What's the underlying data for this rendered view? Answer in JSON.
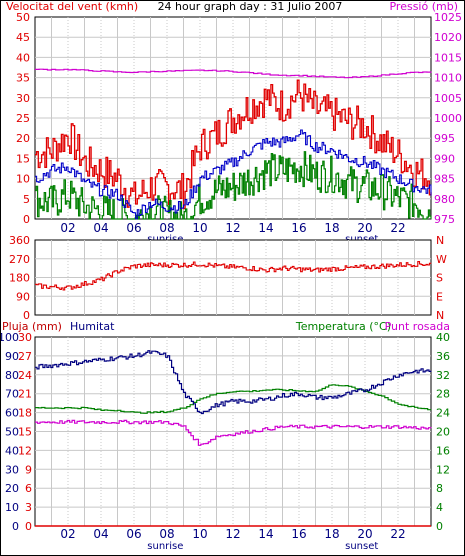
{
  "header": {
    "left_label": "Velocitat del vent (kmh)",
    "title": "24 hour graph day : 31 Julio 2007",
    "right_label": "Pressió (mb)"
  },
  "colors": {
    "red": "#e00000",
    "blue": "#0000c8",
    "green": "#008000",
    "magenta": "#d000d0",
    "darkred": "#c00000",
    "navy": "#000080",
    "grid": "#c8c8c8"
  },
  "x_ticks": [
    "02",
    "04",
    "06",
    "08",
    "10",
    "12",
    "14",
    "16",
    "18",
    "20",
    "22"
  ],
  "sunrise_label": "sunrise",
  "sunset_label": "sunset",
  "chart_data": [
    {
      "type": "line",
      "ylim": [
        0,
        50
      ],
      "y2lim": [
        975,
        1025
      ],
      "yticks": [
        "0",
        "5",
        "10",
        "15",
        "20",
        "25",
        "30",
        "35",
        "40",
        "45",
        "50"
      ],
      "y2ticks": [
        "975",
        "980",
        "985",
        "990",
        "995",
        "1000",
        "1005",
        "1010",
        "1015",
        "1020",
        "1025"
      ],
      "x": [
        0,
        1,
        2,
        3,
        4,
        5,
        6,
        7,
        8,
        9,
        10,
        11,
        12,
        13,
        14,
        15,
        16,
        17,
        18,
        19,
        20,
        21,
        22,
        23,
        24
      ],
      "series": [
        {
          "name": "gust",
          "values": [
            16,
            17,
            21,
            14,
            12,
            10,
            5,
            8,
            8,
            7,
            18,
            21,
            25,
            28,
            30,
            28,
            31,
            27,
            26,
            24,
            23,
            19,
            16,
            12,
            10
          ]
        },
        {
          "name": "avg",
          "values": [
            10,
            12,
            13,
            9,
            7,
            6,
            1,
            4,
            3,
            3,
            10,
            12,
            14,
            17,
            19,
            19,
            21,
            18,
            17,
            15,
            14,
            12,
            10,
            8,
            7
          ]
        },
        {
          "name": "min",
          "values": [
            5,
            4,
            6,
            3,
            2,
            1,
            0,
            2,
            1,
            0,
            5,
            7,
            8,
            10,
            12,
            12,
            13,
            11,
            11,
            9,
            8,
            7,
            5,
            4,
            2
          ]
        },
        {
          "name": "pressure",
          "values": [
            1012,
            1012,
            1012,
            1011.8,
            1011.6,
            1011.4,
            1011.3,
            1011.5,
            1011.6,
            1011.7,
            1011.8,
            1011.7,
            1011.5,
            1011.2,
            1010.8,
            1010.6,
            1010.5,
            1010.3,
            1010.1,
            1010,
            1010.2,
            1010.6,
            1011,
            1011.3,
            1011.3
          ]
        }
      ]
    },
    {
      "type": "line",
      "ylim": [
        0,
        360
      ],
      "yticks": [
        "0",
        "90",
        "180",
        "270",
        "360"
      ],
      "compass": [
        "N",
        "W",
        "S",
        "E",
        "N"
      ],
      "x": [
        0,
        1,
        2,
        3,
        4,
        5,
        6,
        7,
        8,
        9,
        10,
        11,
        12,
        13,
        14,
        15,
        16,
        17,
        18,
        19,
        20,
        21,
        22,
        23,
        24
      ],
      "series": [
        {
          "name": "direction",
          "values": [
            140,
            135,
            130,
            150,
            170,
            210,
            235,
            240,
            240,
            240,
            245,
            235,
            230,
            225,
            215,
            225,
            220,
            215,
            222,
            225,
            230,
            235,
            240,
            245,
            245
          ]
        }
      ]
    },
    {
      "type": "line",
      "title_left": "Pluja (mm)",
      "title_mid": "Humitat",
      "title_right_a": "Temperatura (°C)",
      "title_right_b": "Punt rosada",
      "ylim_rain": [
        0,
        30
      ],
      "ylim_hum": [
        0,
        100
      ],
      "ylim_temp": [
        0,
        40
      ],
      "yticks_rain": [
        "0",
        "3",
        "6",
        "9",
        "12",
        "15",
        "18",
        "21",
        "24",
        "27",
        "30"
      ],
      "yticks_hum": [
        "0",
        "10",
        "20",
        "30",
        "40",
        "50",
        "60",
        "70",
        "80",
        "90",
        "100"
      ],
      "yticks_temp": [
        "0",
        "4",
        "8",
        "12",
        "16",
        "20",
        "24",
        "28",
        "32",
        "36",
        "40"
      ],
      "x": [
        0,
        1,
        2,
        3,
        4,
        5,
        6,
        7,
        8,
        9,
        10,
        11,
        12,
        13,
        14,
        15,
        16,
        17,
        18,
        19,
        20,
        21,
        22,
        23,
        24
      ],
      "series": [
        {
          "name": "rain",
          "values": [
            0,
            0,
            0,
            0,
            0,
            0,
            0,
            0,
            0,
            0,
            0,
            0,
            0,
            0,
            0,
            0,
            0,
            0,
            0,
            0,
            0,
            0,
            0,
            0,
            0
          ]
        },
        {
          "name": "humidity",
          "values": [
            84,
            85,
            86,
            87,
            88,
            89,
            90,
            92,
            90,
            70,
            60,
            64,
            66,
            66,
            67,
            69,
            70,
            68,
            68,
            70,
            72,
            76,
            80,
            82,
            82
          ]
        },
        {
          "name": "temperature",
          "values": [
            25,
            25,
            25,
            25,
            24.5,
            24.5,
            24,
            24,
            24.2,
            25,
            27,
            28,
            28.5,
            28.5,
            28.8,
            28.8,
            28.6,
            28.5,
            30,
            29.5,
            28.5,
            27.5,
            25.8,
            25,
            24.6
          ]
        },
        {
          "name": "dewpoint",
          "values": [
            22,
            22,
            22,
            22,
            22,
            22,
            22,
            22,
            22,
            21,
            17,
            19,
            19.5,
            20,
            20.5,
            21,
            21,
            21,
            21,
            21,
            21,
            21,
            21,
            20.8,
            20.6
          ]
        }
      ]
    }
  ]
}
